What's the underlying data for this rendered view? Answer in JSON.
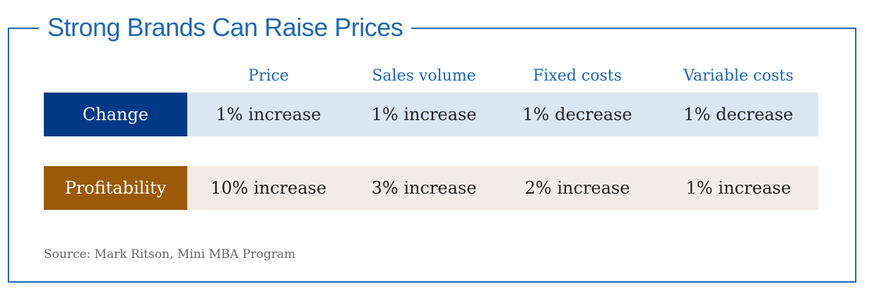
{
  "chart_data": {
    "type": "table",
    "title": "Strong Brands Can Raise Prices",
    "columns": [
      "Price",
      "Sales volume",
      "Fixed costs",
      "Variable costs"
    ],
    "rows": [
      {
        "label": "Change",
        "label_color": "#003a87",
        "band_color": "#dbe6f3",
        "cells": [
          "1% increase",
          "1% increase",
          "1% decrease",
          "1% decrease"
        ]
      },
      {
        "label": "Profitability",
        "label_color": "#9b5a08",
        "band_color": "#f3ebe6",
        "cells": [
          "10% increase",
          "3% increase",
          "2% increase",
          "1% increase"
        ]
      }
    ],
    "source": "Source: Mark Ritson, Mini MBA Program"
  },
  "colors": {
    "accent": "#1f67b1"
  }
}
